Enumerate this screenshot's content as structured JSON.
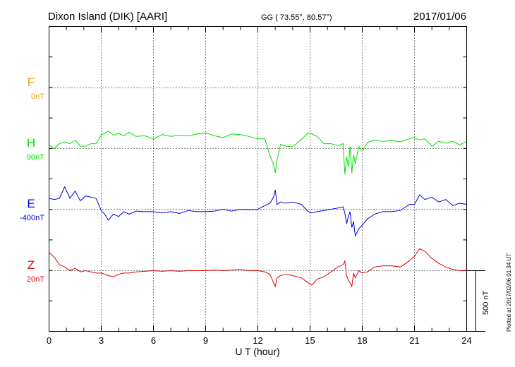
{
  "header": {
    "station": "Dixon Island (DIK)  [AARI]",
    "coords": "GG ( 73.55°,  80.57°)",
    "date": "2017/01/06"
  },
  "footer": {
    "plotted": "Plotted at 2017/02/06 01:34 UT"
  },
  "scale_bar": {
    "label": "500 nT",
    "value": 500
  },
  "colors": {
    "F": "#f0a000",
    "H": "#00e000",
    "E": "#0000e0",
    "Z": "#e00000"
  },
  "chart_data": {
    "type": "line",
    "xlabel": "U T (hour)",
    "xlim": [
      0,
      24
    ],
    "xticks": [
      "0",
      "3",
      "6",
      "9",
      "12",
      "15",
      "18",
      "21",
      "24"
    ],
    "series": [
      {
        "name": "F",
        "baseline_label": "0nT",
        "x": [],
        "y": []
      },
      {
        "name": "H",
        "baseline_label": "90nT",
        "x": [
          0,
          0.3,
          0.6,
          0.9,
          1.2,
          1.5,
          1.8,
          2.1,
          2.4,
          2.7,
          3.0,
          3.2,
          3.4,
          3.7,
          4.0,
          4.3,
          4.6,
          5.0,
          5.5,
          6.0,
          6.5,
          7.0,
          7.5,
          8.0,
          8.5,
          9.0,
          9.5,
          10.0,
          10.5,
          11.0,
          11.5,
          12.0,
          12.4,
          12.7,
          12.9,
          13.0,
          13.1,
          13.3,
          13.6,
          14.0,
          14.5,
          14.9,
          15.1,
          15.4,
          15.8,
          16.2,
          16.6,
          16.9,
          17.0,
          17.1,
          17.2,
          17.3,
          17.4,
          17.5,
          17.6,
          17.8,
          18.0,
          18.3,
          18.7,
          19.2,
          19.7,
          20.2,
          20.7,
          21.0,
          21.3,
          21.6,
          22.0,
          22.4,
          22.8,
          23.2,
          23.6,
          24.0
        ],
        "y": [
          30,
          0,
          40,
          55,
          40,
          70,
          20,
          20,
          40,
          40,
          110,
          125,
          145,
          110,
          125,
          105,
          135,
          100,
          105,
          80,
          115,
          100,
          110,
          105,
          120,
          130,
          105,
          90,
          120,
          115,
          100,
          80,
          80,
          -60,
          -130,
          -200,
          -100,
          35,
          20,
          15,
          75,
          130,
          120,
          100,
          40,
          40,
          25,
          40,
          -210,
          -70,
          -150,
          20,
          -200,
          -50,
          -125,
          20,
          -20,
          50,
          70,
          60,
          65,
          55,
          80,
          90,
          70,
          80,
          20,
          60,
          45,
          60,
          30,
          60
        ]
      },
      {
        "name": "E",
        "baseline_label": "-400nT",
        "x": [
          0,
          0.3,
          0.6,
          0.9,
          1.2,
          1.5,
          1.8,
          2.1,
          2.4,
          2.7,
          3.0,
          3.2,
          3.4,
          3.7,
          4.0,
          4.3,
          4.6,
          5.0,
          5.5,
          6.0,
          6.5,
          7.0,
          7.5,
          8.0,
          8.5,
          9.0,
          9.5,
          10.0,
          10.5,
          11.0,
          11.5,
          12.0,
          12.4,
          12.7,
          12.9,
          13.0,
          13.1,
          13.3,
          13.6,
          14.0,
          14.5,
          14.9,
          15.1,
          15.4,
          15.8,
          16.2,
          16.6,
          16.9,
          17.0,
          17.1,
          17.2,
          17.3,
          17.4,
          17.5,
          17.6,
          17.8,
          18.0,
          18.3,
          18.7,
          19.2,
          19.7,
          20.2,
          20.7,
          21.0,
          21.3,
          21.6,
          22.0,
          22.4,
          22.8,
          23.2,
          23.6,
          24.0
        ],
        "y": [
          90,
          80,
          90,
          185,
          90,
          150,
          70,
          110,
          100,
          90,
          -10,
          -40,
          -90,
          -40,
          -60,
          -20,
          -40,
          -15,
          -20,
          -20,
          -30,
          -20,
          -35,
          -10,
          -20,
          -20,
          -15,
          0,
          -15,
          0,
          -5,
          0,
          30,
          50,
          100,
          160,
          40,
          60,
          50,
          60,
          40,
          -20,
          -30,
          -20,
          -10,
          0,
          10,
          20,
          -30,
          -120,
          -60,
          -20,
          -150,
          -100,
          -220,
          -160,
          -130,
          -80,
          -40,
          -20,
          -20,
          -10,
          40,
          40,
          120,
          80,
          100,
          60,
          80,
          30,
          50,
          40
        ]
      },
      {
        "name": "Z",
        "baseline_label": "20nT",
        "x": [
          0,
          0.3,
          0.6,
          0.9,
          1.2,
          1.5,
          1.8,
          2.1,
          2.4,
          2.7,
          3.0,
          3.2,
          3.4,
          3.7,
          4.0,
          4.3,
          4.6,
          5.0,
          5.5,
          6.0,
          6.5,
          7.0,
          7.5,
          8.0,
          8.5,
          9.0,
          9.5,
          10.0,
          10.5,
          11.0,
          11.5,
          12.0,
          12.4,
          12.7,
          12.9,
          13.0,
          13.1,
          13.3,
          13.6,
          14.0,
          14.5,
          14.9,
          15.1,
          15.4,
          15.8,
          16.2,
          16.6,
          16.9,
          17.0,
          17.1,
          17.2,
          17.3,
          17.4,
          17.5,
          17.6,
          17.8,
          18.0,
          18.3,
          18.7,
          19.2,
          19.7,
          20.2,
          20.7,
          21.0,
          21.3,
          21.6,
          22.0,
          22.4,
          22.8,
          23.2,
          23.6,
          24.0
        ],
        "y": [
          150,
          110,
          50,
          30,
          0,
          20,
          -10,
          0,
          -10,
          -20,
          -20,
          -30,
          -40,
          -50,
          -30,
          -20,
          -20,
          -10,
          -5,
          0,
          -5,
          0,
          -5,
          0,
          0,
          0,
          5,
          0,
          5,
          10,
          0,
          0,
          -10,
          -30,
          -100,
          -130,
          -60,
          -40,
          -30,
          -40,
          -60,
          -100,
          -120,
          -70,
          -50,
          -10,
          30,
          50,
          80,
          -40,
          -80,
          -100,
          -130,
          -20,
          -60,
          0,
          -20,
          -10,
          30,
          40,
          40,
          30,
          80,
          120,
          180,
          160,
          100,
          60,
          30,
          10,
          0,
          0
        ]
      }
    ]
  }
}
